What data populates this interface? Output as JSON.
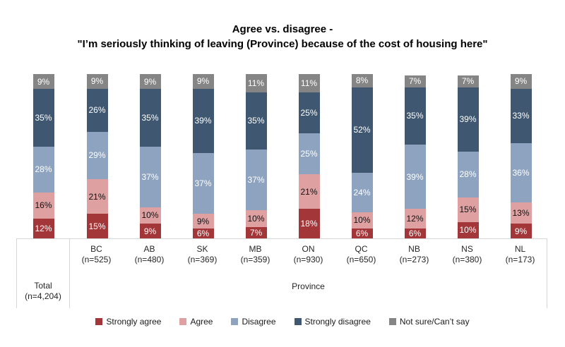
{
  "title": {
    "line1": "Agree vs. disagree -",
    "line2": "\"I’m seriously thinking of leaving (Province) because of the cost of housing here\""
  },
  "chart_data": {
    "type": "bar",
    "stacked": true,
    "orientation": "vertical",
    "value_format": "percent",
    "ylim": [
      0,
      100
    ],
    "grid": false,
    "legend_position": "bottom",
    "categories": [
      "Total (n=4,204)",
      "BC (n=525)",
      "AB (n=480)",
      "SK (n=369)",
      "MB (n=359)",
      "ON (n=930)",
      "QC (n=650)",
      "NB (n=273)",
      "NS (n=380)",
      "NL (n=173)"
    ],
    "series": [
      {
        "name": "Strongly agree",
        "color": "#A33638",
        "label_color": "#ffffff",
        "values": [
          12,
          15,
          9,
          6,
          7,
          18,
          6,
          6,
          10,
          9
        ]
      },
      {
        "name": "Agree",
        "color": "#DFA0A2",
        "label_color": "#111111",
        "values": [
          16,
          21,
          10,
          9,
          10,
          21,
          10,
          12,
          15,
          13
        ]
      },
      {
        "name": "Disagree",
        "color": "#8EA3C0",
        "label_color": "#ffffff",
        "values": [
          28,
          29,
          37,
          37,
          37,
          25,
          24,
          39,
          28,
          36
        ]
      },
      {
        "name": "Strongly disagree",
        "color": "#3F5771",
        "label_color": "#ffffff",
        "values": [
          35,
          26,
          35,
          39,
          35,
          25,
          52,
          35,
          39,
          33
        ]
      },
      {
        "name": "Not sure/Can’t say",
        "color": "#858585",
        "label_color": "#ffffff",
        "values": [
          9,
          9,
          9,
          9,
          11,
          11,
          8,
          7,
          7,
          9
        ]
      }
    ]
  },
  "x_axis": {
    "total": {
      "name": "Total",
      "n": "(n=4,204)"
    },
    "provinces": [
      {
        "name": "BC",
        "n": "(n=525)"
      },
      {
        "name": "AB",
        "n": "(n=480)"
      },
      {
        "name": "SK",
        "n": "(n=369)"
      },
      {
        "name": "MB",
        "n": "(n=359)"
      },
      {
        "name": "ON",
        "n": "(n=930)"
      },
      {
        "name": "QC",
        "n": "(n=650)"
      },
      {
        "name": "NB",
        "n": "(n=273)"
      },
      {
        "name": "NS",
        "n": "(n=380)"
      },
      {
        "name": "NL",
        "n": "(n=173)"
      }
    ],
    "group_label": "Province"
  },
  "legend": [
    "Strongly agree",
    "Agree",
    "Disagree",
    "Strongly disagree",
    "Not sure/Can’t say"
  ],
  "colors": {
    "strongly_agree": "#A33638",
    "agree": "#DFA0A2",
    "disagree": "#8EA3C0",
    "strongly_disagree": "#3F5771",
    "not_sure": "#858585",
    "axis_line": "#d6d6d6",
    "axis_text": "#262626"
  }
}
